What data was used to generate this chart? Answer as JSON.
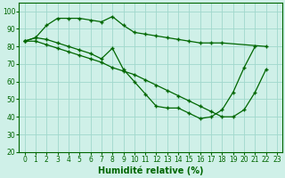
{
  "xlabel": "Humidité relative (%)",
  "xlim": [
    -0.5,
    23.5
  ],
  "ylim": [
    20,
    105
  ],
  "yticks": [
    20,
    30,
    40,
    50,
    60,
    70,
    80,
    90,
    100
  ],
  "xticks": [
    0,
    1,
    2,
    3,
    4,
    5,
    6,
    7,
    8,
    9,
    10,
    11,
    12,
    13,
    14,
    15,
    16,
    17,
    18,
    19,
    20,
    21,
    22,
    23
  ],
  "background_color": "#cff0e8",
  "grid_color": "#a0d8cc",
  "line_color": "#006600",
  "line_A": [
    83,
    85,
    92,
    96,
    96,
    96,
    95,
    94,
    97,
    92,
    88,
    87,
    86,
    85,
    84,
    83,
    82,
    82,
    82,
    null,
    null,
    null,
    80,
    null
  ],
  "line_B": [
    83,
    85,
    84,
    82,
    80,
    78,
    76,
    73,
    79,
    67,
    60,
    53,
    46,
    45,
    45,
    42,
    39,
    40,
    44,
    54,
    68,
    80,
    null,
    null
  ],
  "line_C": [
    83,
    83,
    81,
    79,
    77,
    75,
    73,
    71,
    68,
    66,
    64,
    61,
    58,
    55,
    52,
    49,
    46,
    43,
    40,
    40,
    44,
    54,
    67,
    null
  ]
}
